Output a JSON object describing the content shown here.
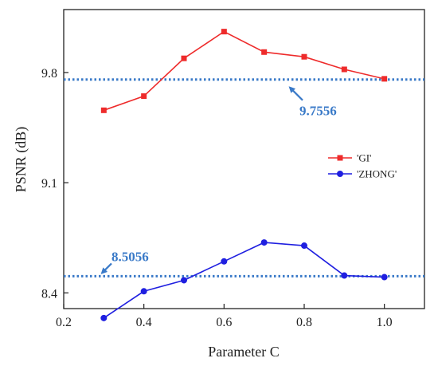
{
  "chart_data": {
    "type": "line",
    "xlabel": "Parameter C",
    "ylabel": "PSNR (dB)",
    "xlim": [
      0.2,
      1.1
    ],
    "ylim": [
      8.3,
      10.2
    ],
    "xticks": [
      "0.2",
      "0.4",
      "0.6",
      "0.8",
      "1.0"
    ],
    "yticks": [
      "8.4",
      "9.1",
      "9.8"
    ],
    "x": [
      0.3,
      0.4,
      0.5,
      0.6,
      0.7,
      0.8,
      0.9,
      1.0
    ],
    "series": [
      {
        "name": "'GI'",
        "color": "#ee2b2b",
        "marker": "square",
        "values": [
          9.56,
          9.65,
          9.89,
          10.06,
          9.93,
          9.9,
          9.82,
          9.76
        ]
      },
      {
        "name": "'ZHONG'",
        "color": "#1f1fe0",
        "marker": "circle",
        "values": [
          8.24,
          8.41,
          8.48,
          8.6,
          8.72,
          8.7,
          8.51,
          8.5
        ]
      }
    ],
    "reference_lines": [
      {
        "y": 9.7556,
        "label": "9.7556",
        "color": "#3a7ac8"
      },
      {
        "y": 8.5056,
        "label": "8.5056",
        "color": "#3a7ac8"
      }
    ],
    "legend": {
      "position": "right-middle"
    },
    "grid": false
  }
}
